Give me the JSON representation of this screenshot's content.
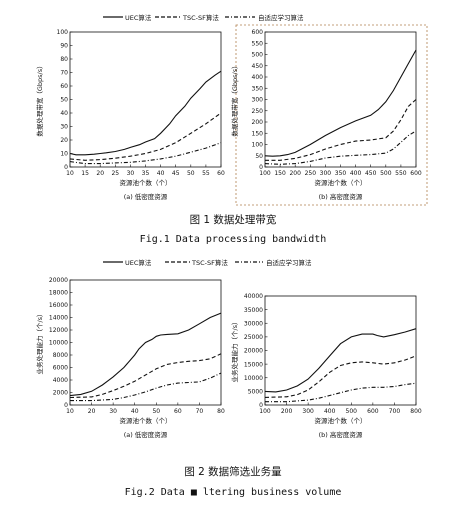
{
  "legend": {
    "items": [
      {
        "label": "UEC算法",
        "dash": "solid"
      },
      {
        "label": "TSC-SF算法",
        "dash": "dashed"
      },
      {
        "label": "自适应学习算法",
        "dash": "dashdot"
      }
    ]
  },
  "figure1": {
    "caption_zh": "图 1  数据处理带宽",
    "caption_en": "Fig.1  Data processing bandwidth"
  },
  "figure2": {
    "caption_zh": "图 2  数据筛选业务量",
    "caption_en": "Fig.2  Data ■ ltering business volume"
  },
  "chart_data": [
    {
      "id": "fig1a",
      "type": "line",
      "subtitle": "(a) 低密度资源",
      "xlabel": "资源池个数（个）",
      "ylabel": "数据处理带宽（Gbps/s）",
      "xlim": [
        10,
        60
      ],
      "ylim": [
        0,
        100
      ],
      "xticks": [
        10,
        15,
        20,
        25,
        30,
        35,
        40,
        45,
        50,
        55,
        60
      ],
      "yticks": [
        0,
        10,
        20,
        30,
        40,
        50,
        60,
        70,
        80,
        90,
        100
      ],
      "series": [
        {
          "x": [
            10,
            12,
            15,
            18,
            20,
            22,
            25,
            28,
            30,
            33,
            35,
            38,
            40,
            43,
            45,
            48,
            50,
            53,
            55,
            58,
            60
          ],
          "y": [
            10,
            9,
            9,
            9.5,
            10,
            10.5,
            11.5,
            13,
            14.5,
            16.5,
            18.5,
            21,
            25,
            32,
            38,
            45,
            51,
            58,
            63,
            68,
            71
          ]
        },
        {
          "x": [
            10,
            15,
            20,
            25,
            30,
            35,
            40,
            45,
            50,
            55,
            60
          ],
          "y": [
            6,
            5,
            5.5,
            6.5,
            8,
            10,
            13,
            18,
            25,
            32,
            40
          ]
        },
        {
          "x": [
            10,
            15,
            20,
            25,
            30,
            35,
            40,
            45,
            50,
            55,
            60
          ],
          "y": [
            4,
            2.5,
            2.5,
            3,
            3.5,
            4.5,
            6,
            8,
            11,
            14,
            18
          ]
        }
      ]
    },
    {
      "id": "fig1b",
      "type": "line",
      "subtitle": "(b) 高密度资源",
      "xlabel": "资源池个数（个）",
      "ylabel": "数据处理带宽（Gbps/s）",
      "xlim": [
        100,
        600
      ],
      "ylim": [
        0,
        600
      ],
      "xticks": [
        100,
        150,
        200,
        250,
        300,
        350,
        400,
        450,
        500,
        550,
        600
      ],
      "yticks": [
        0,
        50,
        100,
        150,
        200,
        250,
        300,
        350,
        400,
        450,
        500,
        550,
        600
      ],
      "series": [
        {
          "x": [
            100,
            125,
            150,
            175,
            200,
            250,
            300,
            350,
            400,
            450,
            475,
            500,
            525,
            550,
            575,
            600
          ],
          "y": [
            50,
            48,
            50,
            55,
            65,
            100,
            140,
            175,
            205,
            230,
            255,
            290,
            340,
            400,
            460,
            520
          ]
        },
        {
          "x": [
            100,
            150,
            200,
            250,
            300,
            350,
            400,
            450,
            500,
            525,
            550,
            575,
            600
          ],
          "y": [
            30,
            30,
            38,
            55,
            80,
            100,
            115,
            120,
            130,
            160,
            210,
            270,
            300
          ]
        },
        {
          "x": [
            100,
            150,
            200,
            250,
            300,
            350,
            400,
            450,
            500,
            525,
            550,
            575,
            600
          ],
          "y": [
            15,
            12,
            15,
            25,
            40,
            48,
            52,
            55,
            62,
            80,
            110,
            140,
            160
          ]
        }
      ]
    },
    {
      "id": "fig2a",
      "type": "line",
      "subtitle": "(a) 低密度资源",
      "xlabel": "资源池个数（个）",
      "ylabel": "业务处理能力（个/s）",
      "xlim": [
        10,
        80
      ],
      "ylim": [
        0,
        20000
      ],
      "xticks": [
        10,
        20,
        30,
        40,
        50,
        60,
        70,
        80
      ],
      "yticks": [
        0,
        2000,
        4000,
        6000,
        8000,
        10000,
        12000,
        14000,
        16000,
        18000,
        20000
      ],
      "series": [
        {
          "x": [
            10,
            15,
            20,
            25,
            30,
            35,
            40,
            42,
            45,
            48,
            50,
            52,
            55,
            60,
            65,
            70,
            75,
            80
          ],
          "y": [
            1500,
            1700,
            2200,
            3200,
            4500,
            6000,
            8000,
            9000,
            10000,
            10500,
            11000,
            11200,
            11300,
            11400,
            12000,
            13000,
            14000,
            14700
          ]
        },
        {
          "x": [
            10,
            20,
            25,
            30,
            35,
            40,
            45,
            50,
            55,
            60,
            65,
            70,
            75,
            80
          ],
          "y": [
            1200,
            1300,
            1700,
            2300,
            3000,
            3800,
            4800,
            5800,
            6500,
            6800,
            7000,
            7100,
            7400,
            8200
          ]
        },
        {
          "x": [
            10,
            20,
            30,
            35,
            40,
            45,
            50,
            55,
            60,
            65,
            70,
            75,
            80
          ],
          "y": [
            700,
            700,
            900,
            1200,
            1600,
            2100,
            2700,
            3200,
            3500,
            3600,
            3700,
            4300,
            5100
          ]
        }
      ]
    },
    {
      "id": "fig2b",
      "type": "line",
      "subtitle": "(b) 高密度资源",
      "xlabel": "资源池个数（个）",
      "ylabel": "业务处理能力（个/s）",
      "xlim": [
        100,
        800
      ],
      "ylim": [
        0,
        40000
      ],
      "xticks": [
        100,
        200,
        300,
        400,
        500,
        600,
        700,
        800
      ],
      "yticks": [
        0,
        5000,
        10000,
        15000,
        20000,
        25000,
        30000,
        35000,
        40000
      ],
      "series": [
        {
          "x": [
            100,
            150,
            200,
            250,
            300,
            350,
            400,
            450,
            500,
            550,
            600,
            620,
            650,
            700,
            750,
            800
          ],
          "y": [
            5000,
            4800,
            5500,
            7000,
            9500,
            13500,
            18000,
            22500,
            25000,
            26000,
            26000,
            25500,
            25000,
            25800,
            26800,
            28000
          ]
        },
        {
          "x": [
            100,
            200,
            250,
            300,
            350,
            400,
            450,
            500,
            550,
            600,
            650,
            700,
            750,
            800
          ],
          "y": [
            2800,
            3000,
            3800,
            5500,
            8500,
            12000,
            14500,
            15500,
            15800,
            15500,
            15000,
            15500,
            16500,
            18000
          ]
        },
        {
          "x": [
            100,
            200,
            300,
            350,
            400,
            450,
            500,
            550,
            600,
            650,
            700,
            750,
            800
          ],
          "y": [
            1200,
            1200,
            1800,
            2500,
            3500,
            4500,
            5500,
            6200,
            6500,
            6500,
            6800,
            7500,
            8000
          ]
        }
      ]
    }
  ]
}
